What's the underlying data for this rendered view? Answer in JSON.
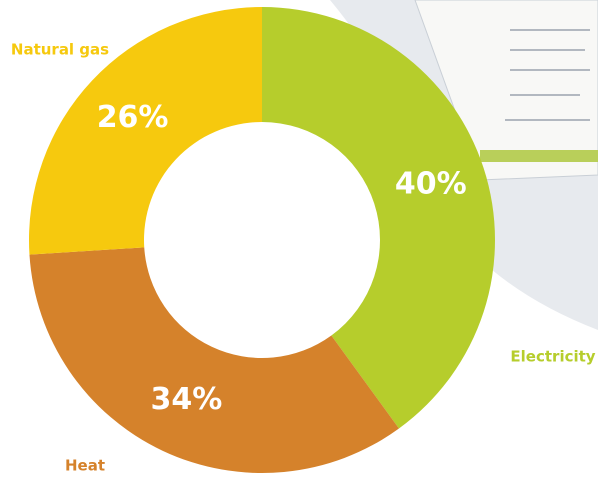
{
  "chart_data": {
    "type": "donut",
    "categories": [
      "Electricity",
      "Heat",
      "Natural gas"
    ],
    "values": [
      40,
      34,
      26
    ],
    "value_labels": [
      "40%",
      "34%",
      "26%"
    ],
    "colors": [
      "#b6cd2c",
      "#d5822b",
      "#f6c90e"
    ]
  }
}
